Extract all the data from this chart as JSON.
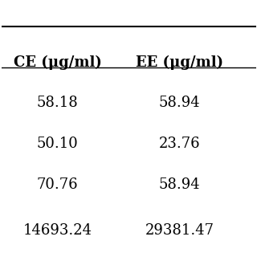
{
  "col1_header": "CE (μg/ml)",
  "col2_header": "EE (μg/ml)",
  "col1_values": [
    "58.18",
    "50.10",
    "70.76",
    "14693.24"
  ],
  "col2_values": [
    "58.94",
    "23.76",
    "58.94",
    "29381.47"
  ],
  "background_color": "#ffffff",
  "text_color": "#000000",
  "header_fontsize": 13,
  "data_fontsize": 13,
  "line_color": "#000000"
}
